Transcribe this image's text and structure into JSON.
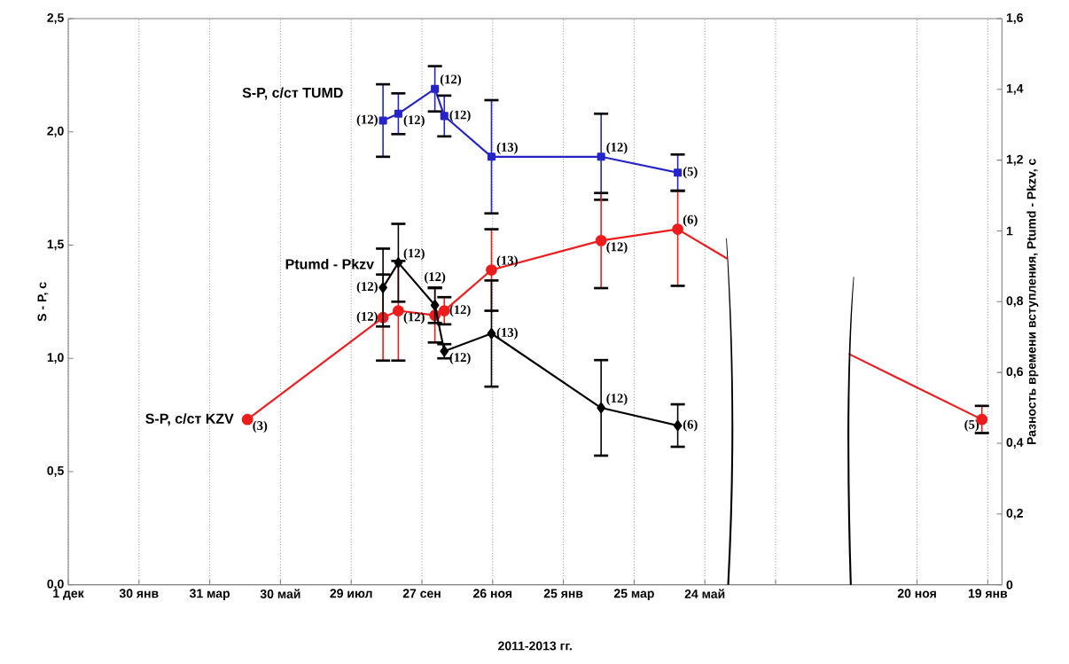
{
  "chart_data": {
    "type": "line",
    "xlabel": "2011-2013 гг.",
    "ylabel": "S - P, с",
    "y2label": "Разность времени вступления, Ptumd - Pkzv, с",
    "xlim": [
      "2010-12-01",
      "2013-01-31"
    ],
    "xticks": [
      {
        "value": "2010-12-01",
        "label": "1 дек"
      },
      {
        "value": "2011-01-30",
        "label": "30 янв"
      },
      {
        "value": "2011-03-31",
        "label": "31 мар"
      },
      {
        "value": "2011-05-30",
        "label": "30 май"
      },
      {
        "value": "2011-07-29",
        "label": "29 июл"
      },
      {
        "value": "2011-09-27",
        "label": "27 сен"
      },
      {
        "value": "2011-11-26",
        "label": "26 ноя"
      },
      {
        "value": "2012-01-25",
        "label": "25 янв"
      },
      {
        "value": "2012-03-25",
        "label": "25 мар"
      },
      {
        "value": "2012-05-24",
        "label": "24 май"
      },
      {
        "value": "2012-07-23",
        "label": null
      },
      {
        "value": "2012-11-20",
        "label": "20 ноя"
      },
      {
        "value": "2013-01-19",
        "label": "19 янв"
      }
    ],
    "ylim": [
      0,
      2.5
    ],
    "yticks": [
      {
        "value": 0,
        "label": "0,0"
      },
      {
        "value": 0.5,
        "label": "0,5"
      },
      {
        "value": 1,
        "label": "1,0"
      },
      {
        "value": 1.5,
        "label": "1,5"
      },
      {
        "value": 2,
        "label": "2,0"
      },
      {
        "value": 2.5,
        "label": "2,5"
      }
    ],
    "y2lim": [
      0,
      1.6
    ],
    "y2ticks": [
      0,
      {
        "value": 0.2,
        "label": "0,2"
      },
      {
        "value": 0.4,
        "label": "0,4"
      },
      {
        "value": 0.6,
        "label": "0,6"
      },
      {
        "value": 0.8,
        "label": "0,8"
      },
      1,
      {
        "value": 1.2,
        "label": "1,2"
      },
      {
        "value": 1.4,
        "label": "1,4"
      },
      {
        "value": 1.6,
        "label": "1,6"
      }
    ],
    "grid": "x",
    "series": [
      {
        "name": "S-P, с/ст TUMD",
        "color": "#2424c8",
        "marker": "square",
        "x": [
          "2011-08-25",
          "2011-09-07",
          "2011-10-08",
          "2011-10-16",
          "2011-11-25",
          "2012-02-26",
          "2012-05-01"
        ],
        "values": [
          2.05,
          2.08,
          2.19,
          2.07,
          1.89,
          1.89,
          1.82
        ],
        "errors": [
          0.16,
          0.09,
          0.1,
          0.09,
          0.25,
          0.19,
          0.08
        ]
      },
      {
        "name": "S-P, с/ст KZV",
        "color": "#ee1c1c",
        "marker": "circle",
        "x": [
          "2011-05-02",
          "2011-08-25",
          "2011-09-07",
          "2011-10-08",
          "2011-10-16",
          "2011-11-25",
          "2012-02-26",
          "2012-05-01",
          null,
          "2013-01-14"
        ],
        "values": [
          0.73,
          1.18,
          1.21,
          1.19,
          1.21,
          1.39,
          1.52,
          1.57,
          null,
          0.73
        ],
        "errors": [
          null,
          0.19,
          0.22,
          0.12,
          0.06,
          0.18,
          0.21,
          [
            1.32,
            1.74
          ],
          null,
          0.06
        ]
      },
      {
        "name": "Ptumd - Pkzv",
        "color": "#000000",
        "marker": "diamond",
        "axis": "y2",
        "x": [
          "2011-08-25",
          "2011-09-07",
          "2011-10-08",
          "2011-10-16",
          "2011-11-25",
          "2012-02-26",
          "2012-05-01"
        ],
        "values": [
          0.84,
          0.91,
          0.79,
          0.66,
          0.71,
          0.5,
          0.45
        ],
        "errors": [
          0.11,
          0.11,
          0.05,
          0.02,
          0.15,
          0.135,
          0.06
        ]
      },
      {
        "color": "#ee1c1c",
        "marker": "none",
        "x": [
          "2012-05-01",
          "2012-06-12",
          null,
          "2012-09-23",
          "2013-01-14"
        ],
        "values": [
          1.57,
          1.44,
          null,
          1.02,
          0.73
        ]
      }
    ],
    "annotations": [
      {
        "text": "(12)",
        "x": "2011-08-25",
        "y": 2.05
      },
      {
        "text": "(12)",
        "x": "2011-09-07",
        "y": 2.08
      },
      {
        "text": "(12)",
        "x": "2011-10-08",
        "y": 2.19
      },
      {
        "text": "(12)",
        "x": "2011-10-16",
        "y": 2.07
      },
      {
        "text": "(13)",
        "x": "2011-11-25",
        "y": 1.89
      },
      {
        "text": "(12)",
        "x": "2012-02-26",
        "y": 1.89
      },
      {
        "text": "(5)",
        "x": "2012-05-01",
        "y": 1.82
      },
      {
        "text": "(3)",
        "x": "2011-05-02",
        "y": 0.73
      },
      {
        "text": "(12)",
        "x": "2011-08-25",
        "y": 1.18
      },
      {
        "text": "(12)",
        "x": "2011-09-07",
        "y": 1.21
      },
      {
        "text": "(12)",
        "x": "2011-10-16",
        "y": 1.21
      },
      {
        "text": "(13)",
        "x": "2011-11-25",
        "y": 1.39
      },
      {
        "text": "(12)",
        "x": "2012-02-26",
        "y": 1.52
      },
      {
        "text": "(6)",
        "x": "2012-05-01",
        "y": 1.57
      },
      {
        "text": "(5)",
        "x": "2013-01-14",
        "y": 0.73
      },
      "(12)",
      "(12)",
      "(12)",
      "(12)",
      "(13)",
      "(12)",
      "(6)"
    ]
  }
}
